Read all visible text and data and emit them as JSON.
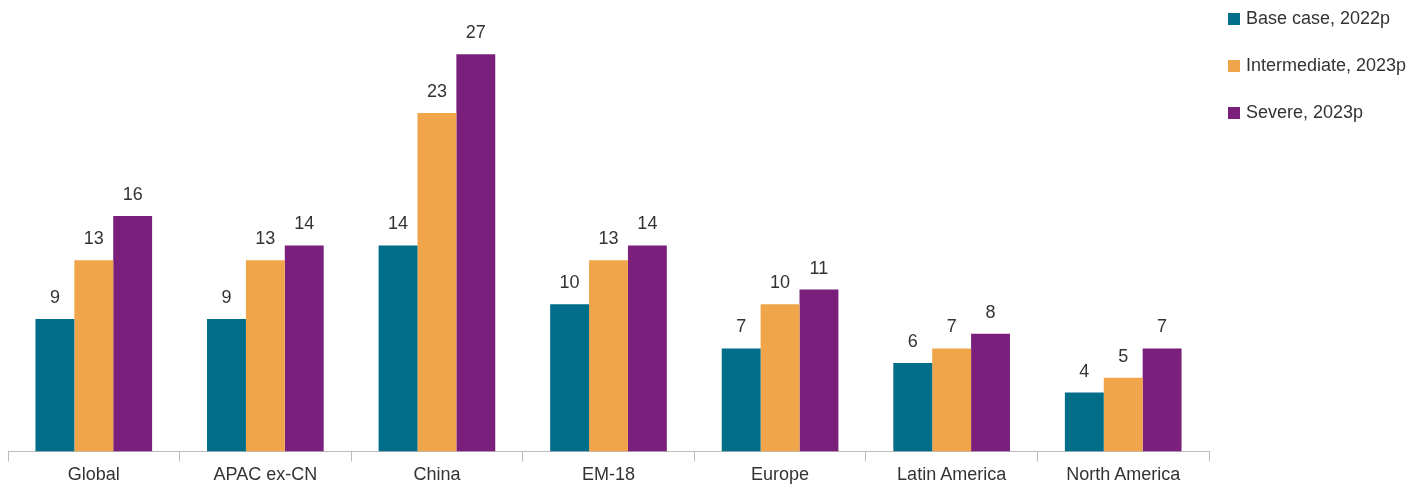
{
  "chart_data": {
    "type": "bar",
    "categories": [
      "Global",
      "APAC ex-CN",
      "China",
      "EM-18",
      "Europe",
      "Latin America",
      "North America"
    ],
    "series": [
      {
        "name": "Base case, 2022p",
        "color": "#006d89",
        "values": [
          9,
          9,
          14,
          10,
          7,
          6,
          4
        ]
      },
      {
        "name": "Intermediate, 2023p",
        "color": "#f0a54a",
        "values": [
          13,
          13,
          23,
          13,
          10,
          7,
          5
        ]
      },
      {
        "name": "Severe, 2023p",
        "color": "#7a1f7c",
        "values": [
          16,
          14,
          27,
          14,
          11,
          8,
          7
        ]
      }
    ],
    "data_labels": true,
    "legend": "top right",
    "grid": false,
    "tick_labels": "x"
  }
}
